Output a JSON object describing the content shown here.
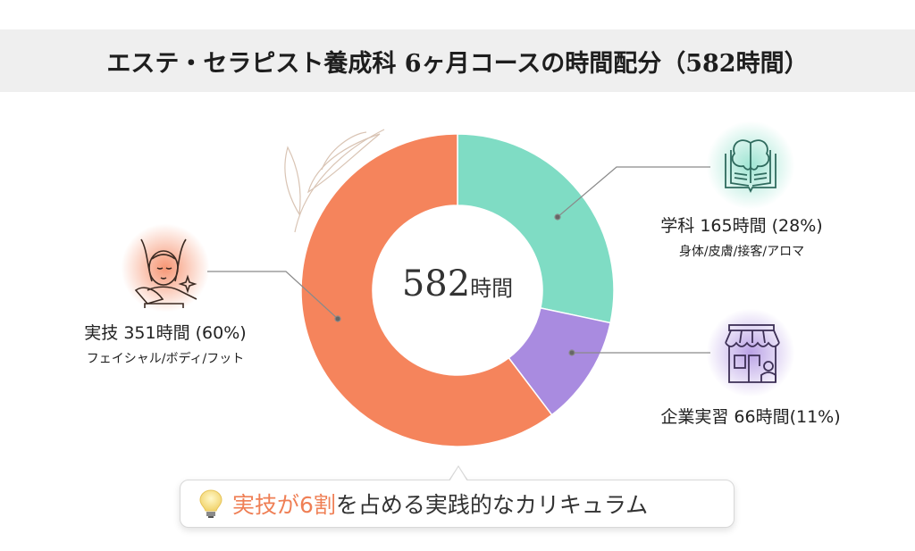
{
  "title": "エステ・セラピスト養成科 6ヶ月コースの時間配分（582時間）",
  "chart_data": {
    "type": "pie",
    "donut": true,
    "title": "エステ・セラピスト養成科 6ヶ月コースの時間配分（582時間）",
    "center_label": {
      "value": "582",
      "unit": "時間"
    },
    "total": 582,
    "segments": [
      {
        "key": "gakka",
        "label": "学科 165時間 (28%)",
        "sub": "身体/皮膚/接客/アロマ",
        "value": 165,
        "percent": 28,
        "color": "#7fdcc4",
        "icon": "brain-book-icon"
      },
      {
        "key": "jisshu",
        "label": "企業実習 66時間(11%)",
        "sub": "",
        "value": 66,
        "percent": 11,
        "color": "#a98be0",
        "icon": "storefront-icon"
      },
      {
        "key": "jitsugi",
        "label": "実技 351時間 (60%)",
        "sub": "フェイシャル/ボディ/フット",
        "value": 351,
        "percent": 60,
        "color": "#f5845c",
        "icon": "facial-massage-icon"
      }
    ]
  },
  "callout": {
    "icon": "lightbulb-icon",
    "highlight": "実技が6割",
    "text": "を占める実践的なカリキュラム",
    "highlight_color": "#ef7f55"
  }
}
